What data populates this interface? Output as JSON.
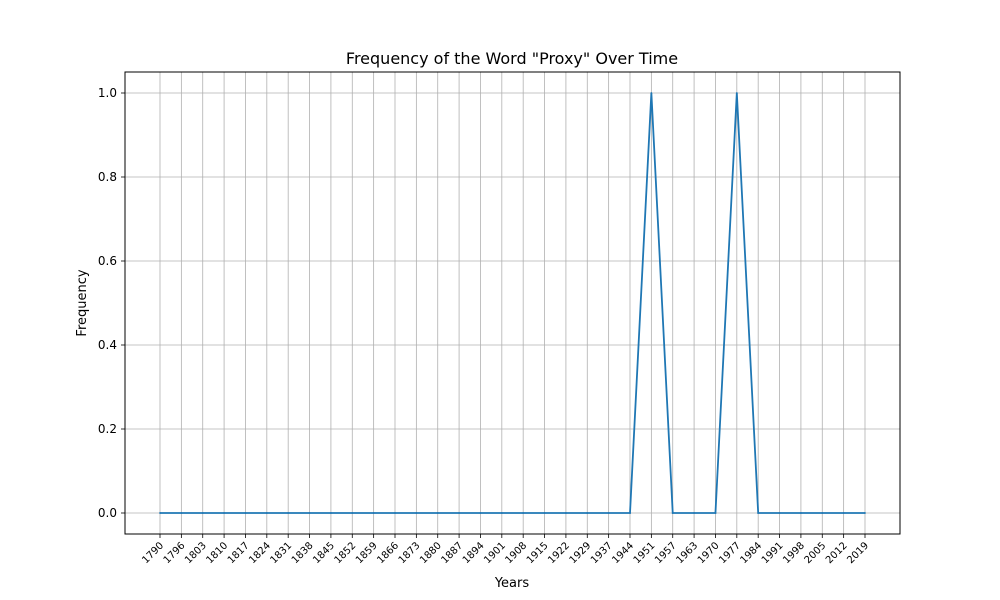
{
  "chart_data": {
    "type": "line",
    "title": "Frequency of the Word \"Proxy\" Over Time",
    "xlabel": "Years",
    "ylabel": "Frequency",
    "categories": [
      "1790",
      "1796",
      "1803",
      "1810",
      "1817",
      "1824",
      "1831",
      "1838",
      "1845",
      "1852",
      "1859",
      "1866",
      "1873",
      "1880",
      "1887",
      "1894",
      "1901",
      "1908",
      "1915",
      "1922",
      "1929",
      "1937",
      "1944",
      "1951",
      "1957",
      "1963",
      "1970",
      "1977",
      "1984",
      "1991",
      "1998",
      "2005",
      "2012",
      "2019"
    ],
    "series": [
      {
        "name": "Proxy",
        "color": "#1f77b4",
        "values": [
          0,
          0,
          0,
          0,
          0,
          0,
          0,
          0,
          0,
          0,
          0,
          0,
          0,
          0,
          0,
          0,
          0,
          0,
          0,
          0,
          0,
          0,
          0,
          1,
          0,
          0,
          0,
          1,
          0,
          0,
          0,
          0,
          0,
          0
        ]
      }
    ],
    "ylim": [
      -0.05,
      1.05
    ],
    "yticks": [
      0.0,
      0.2,
      0.4,
      0.6,
      0.8,
      1.0
    ],
    "ytick_labels": [
      "0.0",
      "0.2",
      "0.4",
      "0.6",
      "0.8",
      "1.0"
    ],
    "grid": true
  }
}
